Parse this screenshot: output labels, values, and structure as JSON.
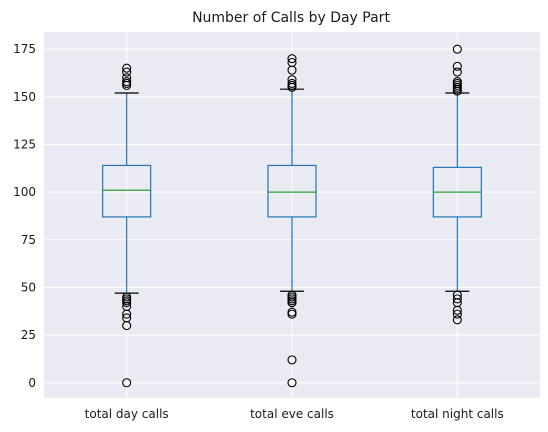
{
  "chart_data": {
    "type": "box",
    "title": "Number of Calls by Day Part",
    "xlabel": "",
    "ylabel": "",
    "ylim": [
      -8,
      184
    ],
    "yticks": [
      0,
      25,
      50,
      75,
      100,
      125,
      150,
      175
    ],
    "grid": true,
    "categories": [
      "total day calls",
      "total eve calls",
      "total night calls"
    ],
    "boxes": [
      {
        "name": "total day calls",
        "whisker_low": 47,
        "q1": 87,
        "median": 101,
        "q3": 114,
        "whisker_high": 152,
        "outliers": [
          0,
          30,
          34,
          36,
          40,
          42,
          43,
          44,
          45,
          156,
          157,
          158,
          160,
          163,
          165
        ]
      },
      {
        "name": "total eve calls",
        "whisker_low": 48,
        "q1": 87,
        "median": 100,
        "q3": 114,
        "whisker_high": 154,
        "outliers": [
          0,
          12,
          36,
          37,
          42,
          43,
          44,
          45,
          46,
          155,
          156,
          157,
          159,
          164,
          168,
          170
        ]
      },
      {
        "name": "total night calls",
        "whisker_low": 48,
        "q1": 87,
        "median": 100,
        "q3": 113,
        "whisker_high": 152,
        "outliers": [
          33,
          36,
          38,
          42,
          44,
          46,
          153,
          154,
          155,
          156,
          157,
          158,
          163,
          166,
          175
        ]
      }
    ],
    "colors": {
      "plot_background": "#eaeaf2",
      "grid": "#ffffff",
      "box": "#1f77b4",
      "median": "#2ca02c",
      "outlier": "#000000"
    }
  }
}
